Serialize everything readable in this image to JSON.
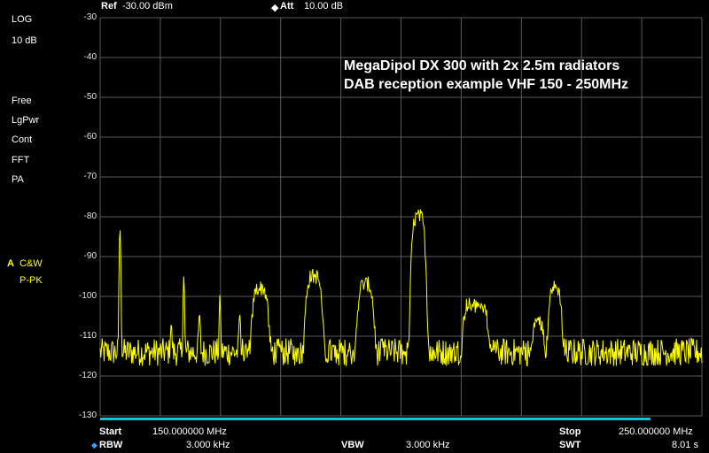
{
  "header": {
    "ref_label": "Ref",
    "ref_value": "-30.00 dBm",
    "att_marker": "◆",
    "att_label": "Att",
    "att_value": "10.00 dB"
  },
  "left_panel": {
    "scale_type": "LOG",
    "scale_div": "10 dB",
    "trigger": "Free",
    "avg_type": "LgPwr",
    "sweep_mode": "Cont",
    "sweep_type": "FFT",
    "preamp": "PA",
    "trace_letter": "A",
    "trace_mode": "C&W",
    "detector": "P-PK"
  },
  "annotation": {
    "line1": "MegaDipol DX 300 with 2x 2.5m radiators",
    "line2": "DAB reception example VHF 150 - 250MHz"
  },
  "footer": {
    "start_label": "Start",
    "start_value": "150.000000 MHz",
    "stop_label": "Stop",
    "stop_value": "250.000000 MHz",
    "rbw_marker": "◆",
    "rbw_label": "RBW",
    "rbw_value": "3.000 kHz",
    "vbw_label": "VBW",
    "vbw_value": "3.000 kHz",
    "swt_label": "SWT",
    "swt_value": "8.01 s"
  },
  "colors": {
    "trace": "#ffff00",
    "grid": "#5a5a5a",
    "accent_bar": "#00c8d8"
  },
  "chart_data": {
    "type": "line",
    "ylim": [
      -130,
      -30
    ],
    "yticks": [
      "-30",
      "-40",
      "-50",
      "-60",
      "-70",
      "-80",
      "-90",
      "-100",
      "-110",
      "-120",
      "-130"
    ],
    "xlim": [
      150,
      250
    ],
    "grid": true,
    "noise_floor": -114,
    "peaks": [
      {
        "x": 153.3,
        "y": -83,
        "w": 0.15
      },
      {
        "x": 161.8,
        "y": -108,
        "w": 0.2
      },
      {
        "x": 163.9,
        "y": -95,
        "w": 0.15
      },
      {
        "x": 166.5,
        "y": -105,
        "w": 0.2
      },
      {
        "x": 169.9,
        "y": -100,
        "w": 0.15
      },
      {
        "x": 173.2,
        "y": -105,
        "w": 0.2
      },
      {
        "x": 176.6,
        "y": -98,
        "w": 1.1
      },
      {
        "x": 185.5,
        "y": -95,
        "w": 1.1
      },
      {
        "x": 194.1,
        "y": -97,
        "w": 1.1
      },
      {
        "x": 202.9,
        "y": -80,
        "w": 0.9
      },
      {
        "x": 211.6,
        "y": -102,
        "w": 1.1
      },
      {
        "x": 213.5,
        "y": -103,
        "w": 0.8
      },
      {
        "x": 222.8,
        "y": -107,
        "w": 0.8
      },
      {
        "x": 225.6,
        "y": -98,
        "w": 0.9
      }
    ]
  }
}
